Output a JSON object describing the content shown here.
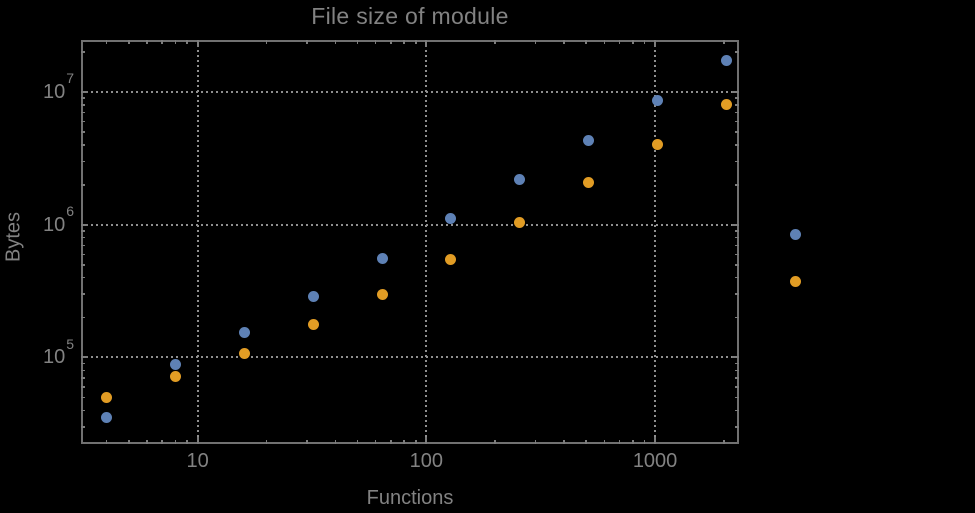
{
  "title": "File size of module",
  "axes": {
    "x_label": "Functions",
    "y_label": "Bytes",
    "x_tick_labels": [
      "10",
      "100",
      "1000"
    ],
    "y_tick_labels": [
      {
        "base": "10",
        "exp": "5"
      },
      {
        "base": "10",
        "exp": "6"
      },
      {
        "base": "10",
        "exp": "7"
      }
    ]
  },
  "colors": {
    "background": "#000000",
    "frame": "#717171",
    "grid": "#8f8f8f",
    "text": "#828282",
    "series_blue": "#5e81b5",
    "series_orange": "#e19c24"
  },
  "chart_data": {
    "type": "scatter",
    "title": "File size of module",
    "xlabel": "Functions",
    "ylabel": "Bytes",
    "x_scale": "log",
    "y_scale": "log",
    "grid": "dotted",
    "legend": "none",
    "x": [
      4,
      8,
      16,
      32,
      64,
      128,
      256,
      512,
      1024,
      2048,
      4096
    ],
    "series": [
      {
        "name": "blue",
        "color": "#5e81b5",
        "values": [
          35500,
          89000,
          155000,
          290000,
          560000,
          1110000,
          2210000,
          4330000,
          8700000,
          17200000,
          840000
        ]
      },
      {
        "name": "orange",
        "color": "#e19c24",
        "values": [
          50000,
          72000,
          108000,
          176000,
          300000,
          547000,
          1050000,
          2070000,
          4050000,
          8100000,
          372000
        ]
      }
    ],
    "x_gridlines": [
      10,
      100,
      1000
    ],
    "y_gridlines": [
      100000,
      1000000,
      10000000
    ],
    "x_log_range": [
      0.49,
      3.367
    ],
    "y_log_range": [
      4.348,
      7.393
    ],
    "marker_diameter_px": 11
  }
}
